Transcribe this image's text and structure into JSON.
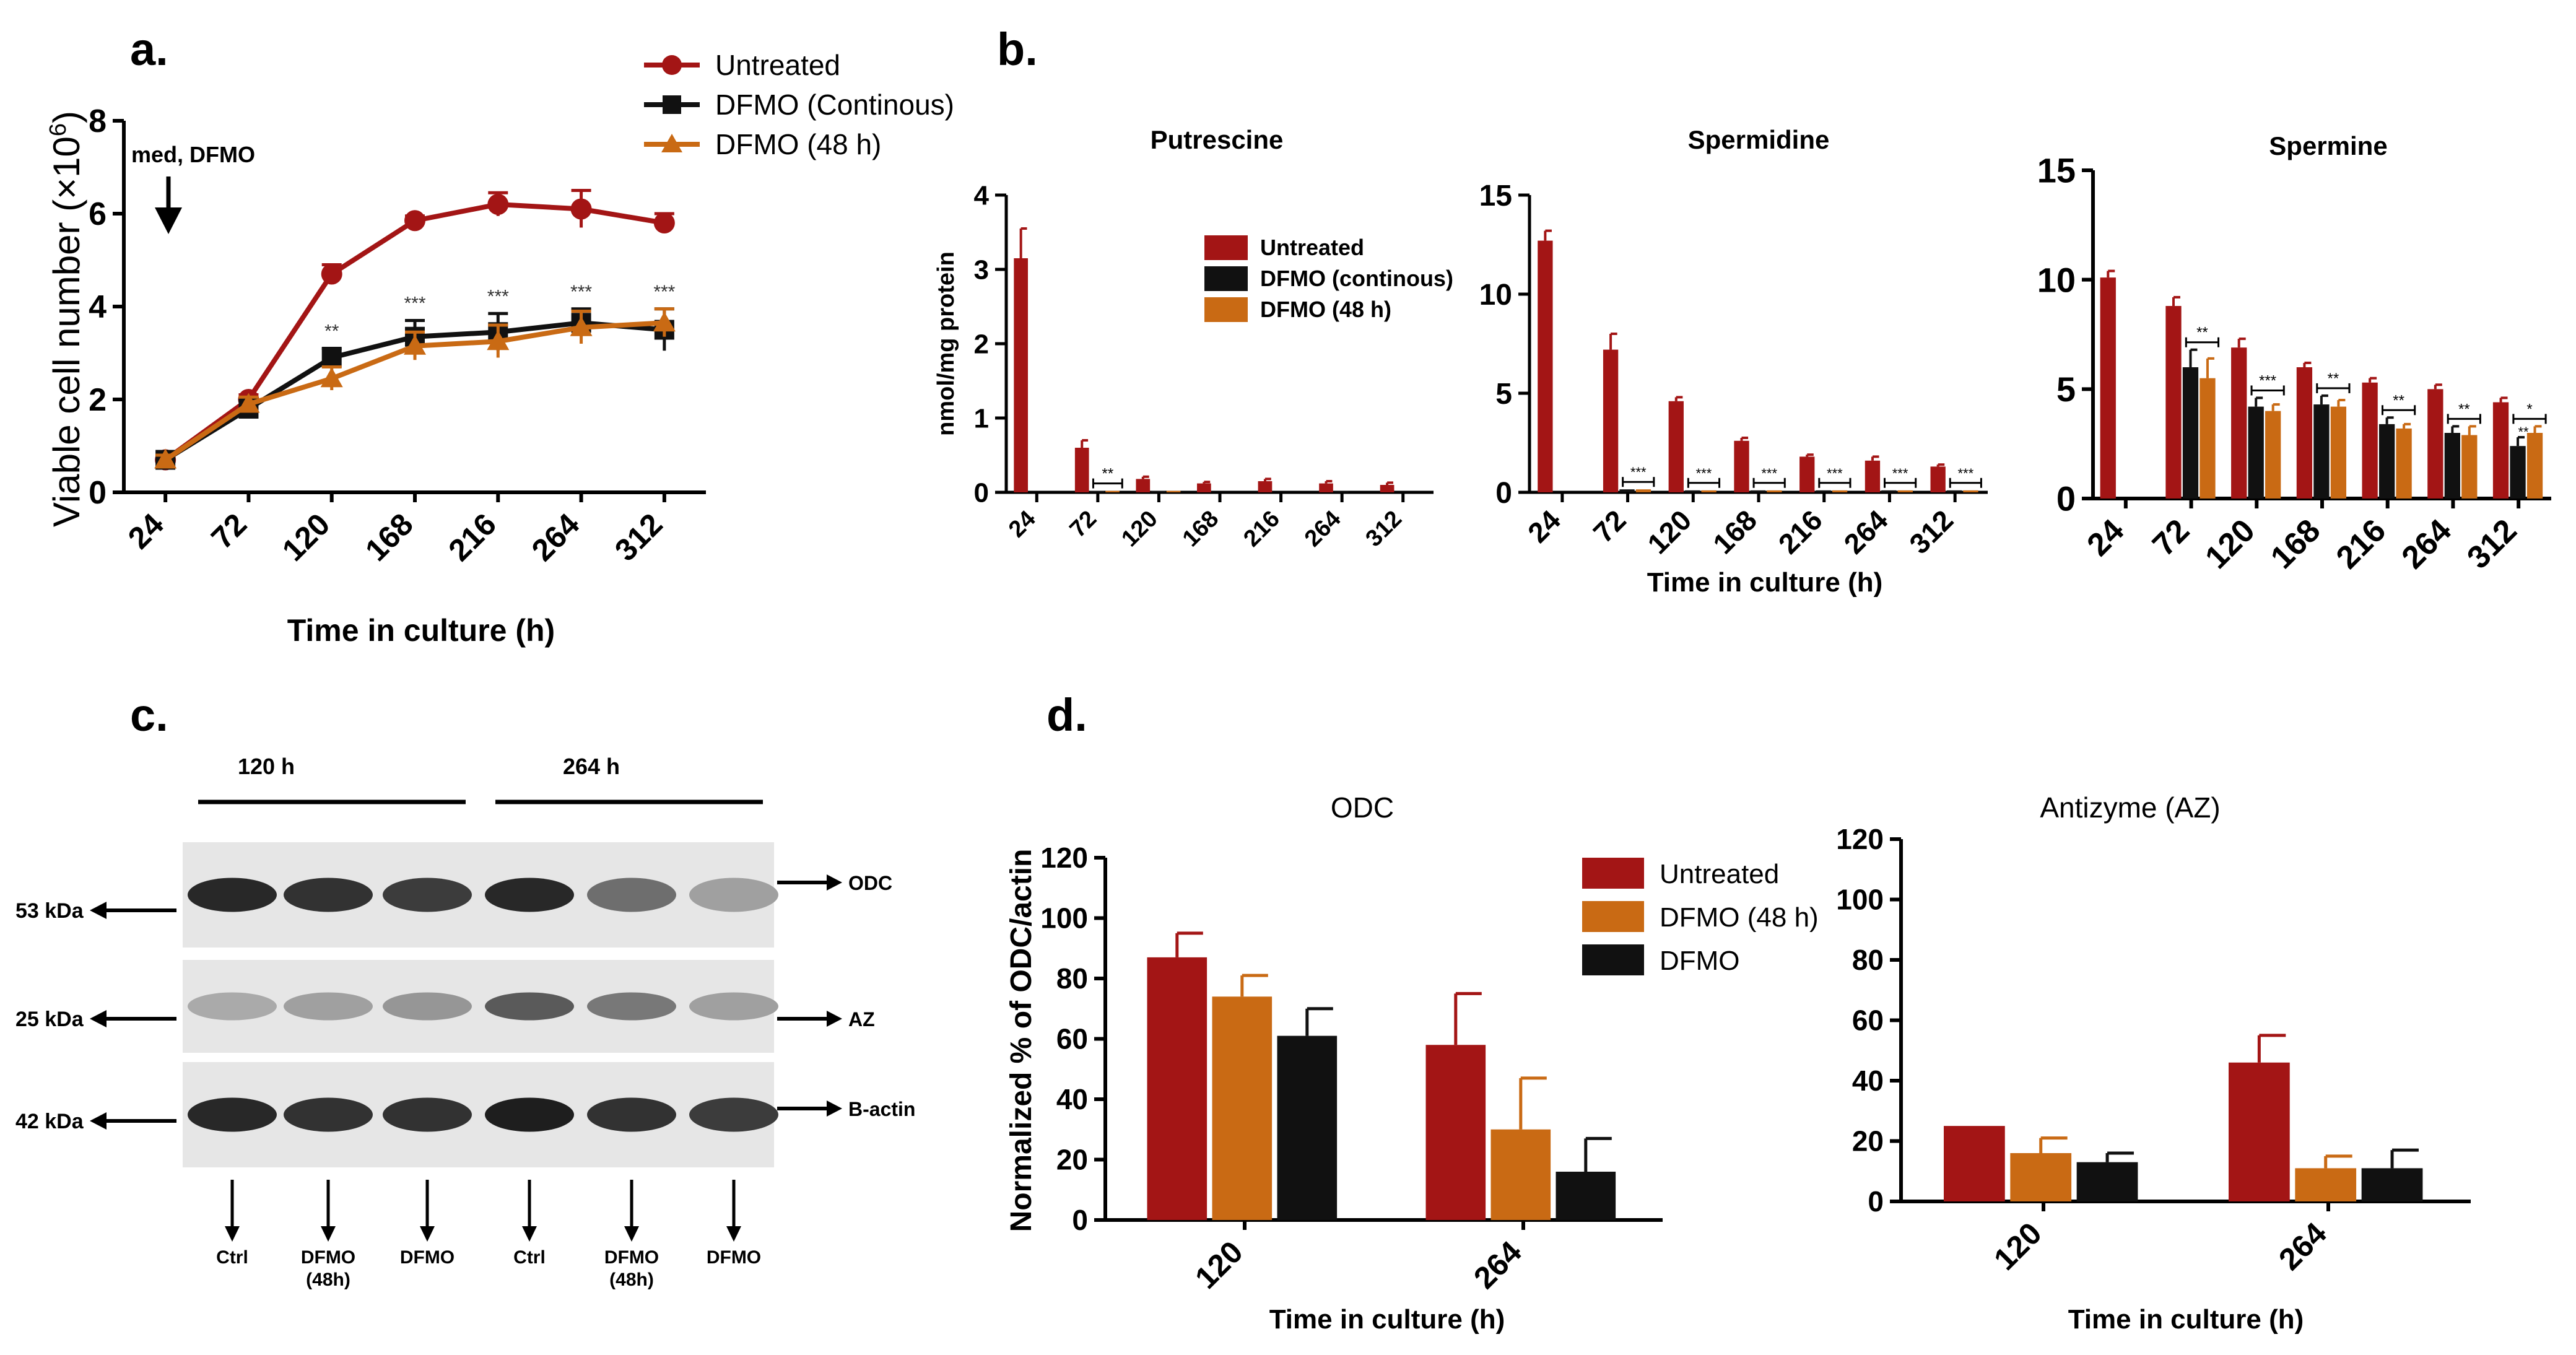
{
  "panels": {
    "a": "a.",
    "b": "b.",
    "c": "c.",
    "d": "d."
  },
  "colors": {
    "untreated": "#a31515",
    "dfmo_continuous": "#111111",
    "dfmo_48h": "#c96a14",
    "axis": "#000000"
  },
  "chart_data": [
    {
      "id": "a",
      "type": "line",
      "title": "",
      "ylabel": "Viable cell number (×10",
      "ylabel_sup": "6",
      "ylabel_end": ")",
      "xlabel": "Time in culture (h)",
      "categories": [
        "24",
        "72",
        "120",
        "168",
        "216",
        "264",
        "312"
      ],
      "ylim": [
        0,
        8
      ],
      "yticks": [
        "0",
        "2",
        "4",
        "6",
        "8"
      ],
      "annotation": "med, DFMO",
      "legend_position": "top-right",
      "series": [
        {
          "name": "Untreated",
          "color": "#a31515",
          "marker": "circle",
          "values": [
            0.7,
            2.0,
            4.7,
            5.85,
            6.2,
            6.1,
            5.8
          ],
          "errors": [
            0.1,
            0.1,
            0.2,
            0.1,
            0.25,
            0.4,
            0.2
          ]
        },
        {
          "name": "DFMO (Continous)",
          "color": "#111111",
          "marker": "square",
          "values": [
            0.7,
            1.8,
            2.9,
            3.35,
            3.45,
            3.65,
            3.5
          ],
          "errors": [
            0.1,
            0.2,
            0.2,
            0.35,
            0.4,
            0.3,
            0.45
          ]
        },
        {
          "name": "DFMO (48 h)",
          "color": "#c96a14",
          "marker": "triangle",
          "values": [
            0.7,
            1.9,
            2.45,
            3.15,
            3.25,
            3.55,
            3.65
          ],
          "errors": [
            0.1,
            0.15,
            0.25,
            0.3,
            0.35,
            0.35,
            0.3
          ]
        }
      ],
      "significance": [
        "",
        "",
        "**",
        "***",
        "***",
        "***",
        "***"
      ]
    },
    {
      "id": "b-putrescine",
      "type": "bar",
      "title": "Putrescine",
      "ylabel": "nmol/mg protein",
      "xlabel": "",
      "categories": [
        "24",
        "72",
        "120",
        "168",
        "216",
        "264",
        "312"
      ],
      "ylim": [
        0,
        4
      ],
      "yticks": [
        "0",
        "1",
        "2",
        "3",
        "4"
      ],
      "series": [
        {
          "name": "Untreated",
          "color": "#a31515",
          "values": [
            3.15,
            0.6,
            0.18,
            0.12,
            0.15,
            0.12,
            0.1
          ],
          "errors": [
            0.4,
            0.1,
            0.03,
            0.02,
            0.03,
            0.03,
            0.03
          ]
        },
        {
          "name": "DFMO (continous)",
          "color": "#111111",
          "values": [
            0,
            0.02,
            0.02,
            0,
            0,
            0.01,
            0
          ],
          "errors": [
            0,
            0,
            0,
            0,
            0,
            0,
            0
          ]
        },
        {
          "name": "DFMO (48 h)",
          "color": "#c96a14",
          "values": [
            0,
            0.02,
            0.02,
            0,
            0,
            0,
            0
          ],
          "errors": [
            0,
            0,
            0,
            0,
            0,
            0,
            0
          ]
        }
      ],
      "significance": [
        "",
        "**",
        "",
        "",
        "",
        "",
        ""
      ],
      "legend": [
        {
          "label": "Untreated",
          "color": "#a31515"
        },
        {
          "label": "DFMO (continous)",
          "color": "#111111"
        },
        {
          "label": "DFMO (48 h)",
          "color": "#c96a14"
        }
      ]
    },
    {
      "id": "b-spermidine",
      "type": "bar",
      "title": "Spermidine",
      "ylabel": "",
      "xlabel": "Time in culture (h)",
      "categories": [
        "24",
        "72",
        "120",
        "168",
        "216",
        "264",
        "312"
      ],
      "ylim": [
        0,
        15
      ],
      "yticks": [
        "0",
        "5",
        "10",
        "15"
      ],
      "series": [
        {
          "name": "Untreated",
          "color": "#a31515",
          "values": [
            12.7,
            7.2,
            4.6,
            2.6,
            1.8,
            1.6,
            1.3
          ],
          "errors": [
            0.5,
            0.8,
            0.2,
            0.15,
            0.1,
            0.2,
            0.1
          ]
        },
        {
          "name": "DFMO (continous)",
          "color": "#111111",
          "values": [
            0,
            0.15,
            0.1,
            0.1,
            0.1,
            0.1,
            0.1
          ],
          "errors": [
            0,
            0,
            0,
            0,
            0,
            0,
            0
          ]
        },
        {
          "name": "DFMO (48 h)",
          "color": "#c96a14",
          "values": [
            0,
            0.15,
            0.1,
            0.1,
            0.1,
            0.1,
            0.1
          ],
          "errors": [
            0,
            0,
            0,
            0,
            0,
            0,
            0
          ]
        }
      ],
      "significance": [
        "",
        "***",
        "***",
        "***",
        "***",
        "***",
        "***"
      ]
    },
    {
      "id": "b-spermine",
      "type": "bar",
      "title": "Spermine",
      "ylabel": "",
      "xlabel": "",
      "categories": [
        "24",
        "72",
        "120",
        "168",
        "216",
        "264",
        "312"
      ],
      "ylim": [
        0,
        15
      ],
      "yticks": [
        "0",
        "5",
        "10",
        "15"
      ],
      "series": [
        {
          "name": "Untreated",
          "color": "#a31515",
          "values": [
            10.1,
            8.8,
            6.9,
            6.0,
            5.3,
            5.0,
            4.4
          ],
          "errors": [
            0.3,
            0.4,
            0.4,
            0.2,
            0.2,
            0.2,
            0.2
          ]
        },
        {
          "name": "DFMO (continous)",
          "color": "#111111",
          "values": [
            0,
            6.0,
            4.2,
            4.3,
            3.4,
            3.0,
            2.4
          ],
          "errors": [
            0,
            0.8,
            0.4,
            0.4,
            0.3,
            0.3,
            0.4
          ]
        },
        {
          "name": "DFMO (48 h)",
          "color": "#c96a14",
          "values": [
            0,
            5.5,
            4.0,
            4.2,
            3.2,
            2.9,
            3.0
          ],
          "errors": [
            0,
            0.9,
            0.3,
            0.3,
            0.2,
            0.4,
            0.3
          ]
        }
      ],
      "significance": [
        "",
        "**",
        "***",
        "**",
        "**",
        "**",
        "*"
      ],
      "extra_marks": [
        "**"
      ]
    },
    {
      "id": "d-odc",
      "type": "bar",
      "title": "ODC",
      "ylabel": "Normalized % of ODC/actin",
      "xlabel": "Time in culture (h)",
      "categories": [
        "120",
        "264"
      ],
      "ylim": [
        0,
        120
      ],
      "yticks": [
        "0",
        "20",
        "40",
        "60",
        "80",
        "100",
        "120"
      ],
      "series": [
        {
          "name": "Untreated",
          "color": "#a31515",
          "values": [
            87,
            58
          ],
          "errors": [
            8,
            17
          ]
        },
        {
          "name": "DFMO (48 h)",
          "color": "#c96a14",
          "values": [
            74,
            30
          ],
          "errors": [
            7,
            17
          ]
        },
        {
          "name": "DFMO",
          "color": "#111111",
          "values": [
            61,
            16
          ],
          "errors": [
            9,
            11
          ]
        }
      ],
      "legend": [
        {
          "label": "Untreated",
          "color": "#a31515"
        },
        {
          "label": "DFMO (48 h)",
          "color": "#c96a14"
        },
        {
          "label": "DFMO",
          "color": "#111111"
        }
      ]
    },
    {
      "id": "d-az",
      "type": "bar",
      "title": "Antizyme (AZ)",
      "ylabel": "",
      "xlabel": "Time in culture (h)",
      "categories": [
        "120",
        "264"
      ],
      "ylim": [
        0,
        120
      ],
      "yticks": [
        "0",
        "20",
        "40",
        "60",
        "80",
        "100",
        "120"
      ],
      "series": [
        {
          "name": "Untreated",
          "color": "#a31515",
          "values": [
            25,
            46
          ],
          "errors": [
            0,
            9
          ]
        },
        {
          "name": "DFMO (48 h)",
          "color": "#c96a14",
          "values": [
            16,
            11
          ],
          "errors": [
            5,
            4
          ]
        },
        {
          "name": "DFMO",
          "color": "#111111",
          "values": [
            13,
            11
          ],
          "errors": [
            3,
            6
          ]
        }
      ]
    }
  ],
  "western_blot": {
    "group_labels": [
      "120 h",
      "264 h"
    ],
    "mw_labels": [
      "53 kDa",
      "25 kDa",
      "42 kDa"
    ],
    "protein_labels": [
      "ODC",
      "AZ",
      "B-actin"
    ],
    "lane_labels": [
      "Ctrl",
      "DFMO\n(48h)",
      "DFMO",
      "Ctrl",
      "DFMO\n(48h)",
      "DFMO"
    ],
    "band_intensity": {
      "ODC": [
        0.95,
        0.9,
        0.85,
        0.95,
        0.6,
        0.35
      ],
      "AZ": [
        0.3,
        0.35,
        0.4,
        0.7,
        0.55,
        0.35
      ],
      "B-actin": [
        0.95,
        0.9,
        0.9,
        1.0,
        0.9,
        0.85
      ]
    }
  }
}
